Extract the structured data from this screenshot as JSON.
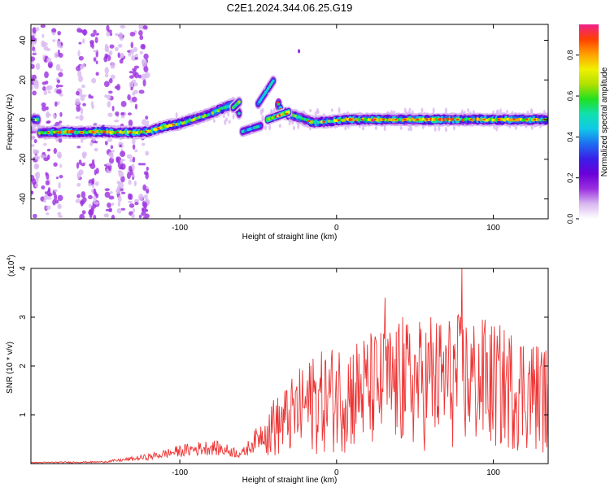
{
  "figure": {
    "title": "C2E1.2024.344.06.25.G19"
  },
  "chart_data": [
    {
      "type": "heatmap",
      "title": "C2E1.2024.344.06.25.G19",
      "xlabel": "Height of straight line (km)",
      "ylabel": "Frequency (Hz)",
      "xlim": [
        -195,
        135
      ],
      "ylim": [
        -50,
        48
      ],
      "x_ticks": [
        -100,
        0,
        100
      ],
      "x_tick_labels": [
        "-100",
        "0",
        "100"
      ],
      "y_ticks": [
        -40,
        -20,
        0,
        20,
        40
      ],
      "y_tick_labels": [
        "-40",
        "-20",
        "0",
        "20",
        "40"
      ],
      "colorbar": {
        "label": "Normalized spectral amplitude",
        "range": [
          0,
          0.95
        ],
        "ticks": [
          0.0,
          0.2,
          0.4,
          0.6,
          0.8
        ],
        "tick_labels": [
          "0.0",
          "0.2",
          "0.4",
          "0.6",
          "0.8"
        ],
        "colormap": [
          "#ffffff",
          "#d8b8f0",
          "#9b30e0",
          "#6a00d8",
          "#3a1ee8",
          "#1e6cf0",
          "#10c8e8",
          "#10e0b0",
          "#20e020",
          "#b0e000",
          "#f0f000",
          "#ffa000",
          "#ff4000",
          "#f0208a"
        ]
      },
      "ridge": [
        {
          "x": -190,
          "y": -6.5,
          "a": 0.55
        },
        {
          "x": -180,
          "y": -6.5,
          "a": 0.65
        },
        {
          "x": -170,
          "y": -6.2,
          "a": 0.85
        },
        {
          "x": -160,
          "y": -6.5,
          "a": 0.6
        },
        {
          "x": -150,
          "y": -6.0,
          "a": 0.82
        },
        {
          "x": -140,
          "y": -6.5,
          "a": 0.6
        },
        {
          "x": -130,
          "y": -6.5,
          "a": 0.7
        },
        {
          "x": -120,
          "y": -6.0,
          "a": 0.65
        },
        {
          "x": -110,
          "y": -3.5,
          "a": 0.75
        },
        {
          "x": -100,
          "y": -2.0,
          "a": 0.6
        },
        {
          "x": -90,
          "y": 0.5,
          "a": 0.6
        },
        {
          "x": -80,
          "y": 3.0,
          "a": 0.55
        },
        {
          "x": -72,
          "y": 6.0,
          "a": 0.6
        },
        {
          "x": -65,
          "y": 8.0,
          "a": 0.55
        },
        {
          "x": -58,
          "y": -4.0,
          "a": 0.5
        },
        {
          "x": -50,
          "y": -2.5,
          "a": 0.45
        },
        {
          "x": -48,
          "y": 11.0,
          "a": 0.45
        },
        {
          "x": -42,
          "y": 18.0,
          "a": 0.5
        },
        {
          "x": -35,
          "y": 3.5,
          "a": 0.9
        },
        {
          "x": -25,
          "y": 1.5,
          "a": 0.55
        },
        {
          "x": -15,
          "y": -1.5,
          "a": 0.65
        },
        {
          "x": -5,
          "y": -1.0,
          "a": 0.6
        },
        {
          "x": 5,
          "y": 0.0,
          "a": 0.75
        },
        {
          "x": 15,
          "y": 0.0,
          "a": 0.7
        },
        {
          "x": 25,
          "y": 0.0,
          "a": 0.8
        },
        {
          "x": 35,
          "y": 0.0,
          "a": 0.7
        },
        {
          "x": 45,
          "y": 0.0,
          "a": 0.75
        },
        {
          "x": 55,
          "y": 0.0,
          "a": 0.7
        },
        {
          "x": 65,
          "y": 0.0,
          "a": 0.8
        },
        {
          "x": 75,
          "y": 0.0,
          "a": 0.75
        },
        {
          "x": 85,
          "y": 0.0,
          "a": 0.7
        },
        {
          "x": 95,
          "y": 0.0,
          "a": 0.75
        },
        {
          "x": 105,
          "y": 0.0,
          "a": 0.7
        },
        {
          "x": 115,
          "y": 0.0,
          "a": 0.75
        },
        {
          "x": 125,
          "y": 0.0,
          "a": 0.7
        },
        {
          "x": 133,
          "y": 0.0,
          "a": 0.6
        }
      ]
    },
    {
      "type": "line",
      "xlabel": "Height of straight line (km)",
      "ylabel": "SNR (10 * v/v)",
      "y_multiplier_label": "(x10",
      "y_multiplier_exponent": "4",
      "xlim": [
        -195,
        135
      ],
      "ylim": [
        0,
        4
      ],
      "x_ticks": [
        -100,
        0,
        100
      ],
      "x_tick_labels": [
        "-100",
        "0",
        "100"
      ],
      "y_ticks": [
        1,
        2,
        3,
        4
      ],
      "y_tick_labels": [
        "1",
        "2",
        "3",
        "4"
      ],
      "color": "#ee3333",
      "envelope": [
        {
          "x": -195,
          "y": 0.03
        },
        {
          "x": -150,
          "y": 0.05
        },
        {
          "x": -140,
          "y": 0.09
        },
        {
          "x": -120,
          "y": 0.2
        },
        {
          "x": -100,
          "y": 0.38
        },
        {
          "x": -80,
          "y": 0.5
        },
        {
          "x": -60,
          "y": 0.3
        },
        {
          "x": -40,
          "y": 1.3
        },
        {
          "x": -20,
          "y": 2.1
        },
        {
          "x": 0,
          "y": 2.5
        },
        {
          "x": 20,
          "y": 2.7
        },
        {
          "x": 40,
          "y": 2.9
        },
        {
          "x": 60,
          "y": 3.0
        },
        {
          "x": 80,
          "y": 3.1
        },
        {
          "x": 100,
          "y": 2.9
        },
        {
          "x": 120,
          "y": 2.7
        },
        {
          "x": 135,
          "y": 2.4
        }
      ],
      "peaks": [
        {
          "x": 80,
          "y": 4.0
        },
        {
          "x": 31,
          "y": 3.4
        },
        {
          "x": 60,
          "y": 3.0
        },
        {
          "x": 42,
          "y": 3.0
        },
        {
          "x": 95,
          "y": 2.95
        },
        {
          "x": -15,
          "y": 2.15
        },
        {
          "x": -40,
          "y": 1.3
        }
      ]
    }
  ]
}
